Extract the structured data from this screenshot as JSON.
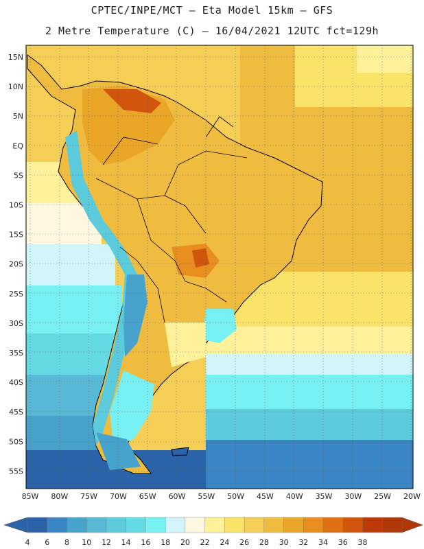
{
  "header": {
    "line1": "CPTEC/INPE/MCT –  Eta Model 15km – GFS",
    "line2": "2 Metre Temperature (C) – 16/04/2021 12UTC fct=129h"
  },
  "map": {
    "lat_ticks": [
      "15N",
      "10N",
      "5N",
      "EQ",
      "5S",
      "10S",
      "15S",
      "20S",
      "25S",
      "30S",
      "35S",
      "40S",
      "45S",
      "50S",
      "55S"
    ],
    "lon_ticks": [
      "85W",
      "80W",
      "75W",
      "70W",
      "65W",
      "60W",
      "55W",
      "50W",
      "45W",
      "40W",
      "35W",
      "30W",
      "25W",
      "20W"
    ],
    "lat_range": [
      17.5,
      -57.5
    ],
    "lon_range": [
      -86,
      -20
    ]
  },
  "colorbar": {
    "labels": [
      "4",
      "6",
      "8",
      "10",
      "12",
      "14",
      "16",
      "18",
      "20",
      "22",
      "24",
      "26",
      "28",
      "30",
      "32",
      "34",
      "36",
      "38"
    ],
    "colors": [
      "#2a63a8",
      "#3a86c4",
      "#48a3cc",
      "#57b9d6",
      "#5ccbdc",
      "#64dbe3",
      "#76f0f2",
      "#d2f5fb",
      "#fff7e0",
      "#fdf29a",
      "#fbe36a",
      "#f5cf55",
      "#f0bc3f",
      "#e9a627",
      "#e78e1f",
      "#e06f12",
      "#d1550c",
      "#bb3a08",
      "#b03806"
    ],
    "low_arrow_color": "#2a63a8",
    "high_arrow_color": "#b03806"
  }
}
